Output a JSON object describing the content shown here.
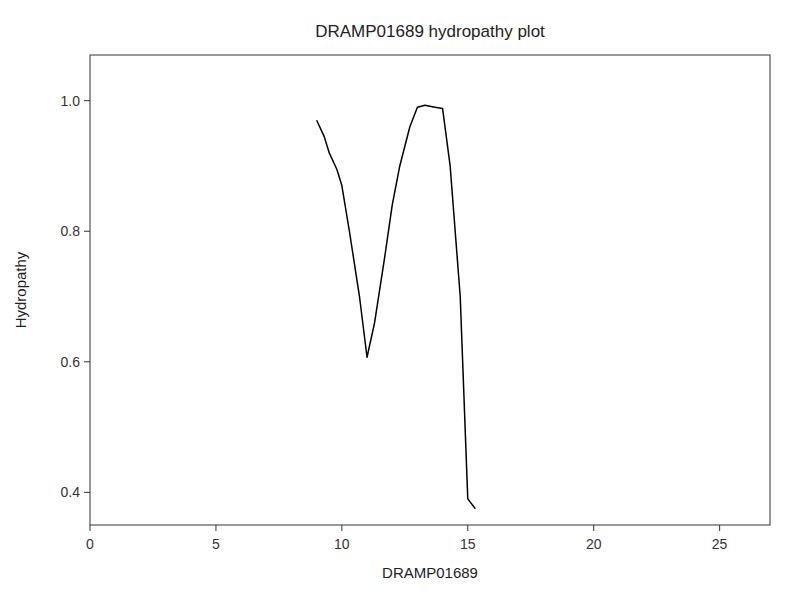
{
  "chart_data": {
    "type": "line",
    "title": "DRAMP01689 hydropathy plot",
    "xlabel": "DRAMP01689",
    "ylabel": "Hydropathy",
    "x": [
      9.0,
      9.3,
      9.5,
      9.8,
      10.0,
      10.3,
      10.7,
      11.0,
      11.3,
      11.7,
      12.0,
      12.3,
      12.7,
      13.0,
      13.3,
      13.7,
      14.0,
      14.3,
      14.7,
      15.0,
      15.3
    ],
    "values": [
      0.97,
      0.945,
      0.92,
      0.895,
      0.87,
      0.8,
      0.7,
      0.607,
      0.66,
      0.76,
      0.84,
      0.9,
      0.96,
      0.99,
      0.993,
      0.99,
      0.988,
      0.9,
      0.7,
      0.39,
      0.375
    ],
    "color": "#000000",
    "xlim": [
      0,
      27
    ],
    "ylim": [
      0.35,
      1.07
    ],
    "xticks": [
      0,
      5,
      10,
      15,
      20,
      25
    ],
    "yticks": [
      0.4,
      0.6,
      0.8,
      {
        "value": 1.0,
        "label": "1.0"
      }
    ],
    "grid": false
  }
}
